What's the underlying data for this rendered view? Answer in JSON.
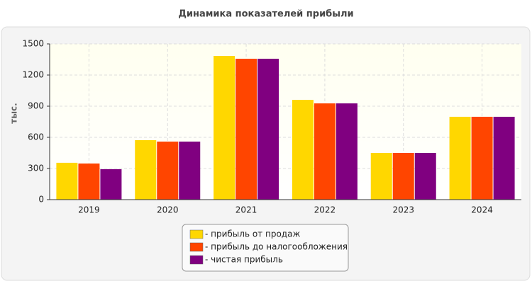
{
  "chart_data": {
    "type": "bar",
    "title": "Динамика показателей прибыли",
    "y_label": "тыс.",
    "categories": [
      "2019",
      "2020",
      "2021",
      "2022",
      "2023",
      "2024"
    ],
    "series": [
      {
        "name": "- прибыль от продаж",
        "color": "#ffd700",
        "values": [
          355,
          573,
          1384,
          961,
          450,
          798
        ]
      },
      {
        "name": "- прибыль до налогообложения",
        "color": "#ff4500",
        "values": [
          348,
          559,
          1357,
          927,
          450,
          798
        ]
      },
      {
        "name": "- чистая прибыль",
        "color": "#800080",
        "values": [
          293,
          559,
          1357,
          927,
          450,
          798
        ]
      }
    ],
    "ylim": [
      0,
      1500
    ],
    "yticks": [
      0,
      300,
      600,
      900,
      1200,
      1500
    ],
    "grid": true
  }
}
